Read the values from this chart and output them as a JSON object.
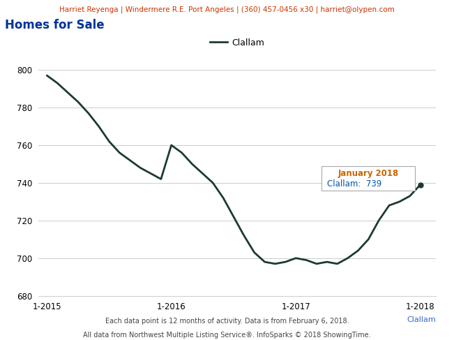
{
  "title": "Homes for Sale",
  "header_text": "Harriet Reyenga | Windermere R.E. Port Angeles | (360) 457-0456 x30 | harriet@olypen.com",
  "footer1": "Each data point is 12 months of activity. Data is from February 6, 2018.",
  "footer2": "All data from Northwest Multiple Listing Service®. InfoSparks © 2018 ShowingTime.",
  "legend_label": "Clallam",
  "tooltip_title": "January 2018",
  "tooltip_label": "Clallam:",
  "tooltip_value": "739",
  "line_color": "#1c3a35",
  "dot_color": "#1c3a35",
  "background_color": "#ffffff",
  "header_bg": "#ebebeb",
  "ylim": [
    680,
    810
  ],
  "yticks": [
    680,
    700,
    720,
    740,
    760,
    780,
    800
  ],
  "xlabel_ticks": [
    "1-2015",
    "1-2016",
    "1-2017",
    "1-2018"
  ],
  "x_values": [
    0,
    1,
    2,
    3,
    4,
    5,
    6,
    7,
    8,
    9,
    10,
    11,
    12,
    13,
    14,
    15,
    16,
    17,
    18,
    19,
    20,
    21,
    22,
    23,
    24,
    25,
    26,
    27,
    28,
    29,
    30,
    31,
    32,
    33,
    34,
    35,
    36
  ],
  "y_values": [
    797,
    793,
    788,
    783,
    777,
    770,
    762,
    756,
    752,
    748,
    745,
    742,
    760,
    756,
    750,
    745,
    740,
    732,
    722,
    712,
    703,
    698,
    697,
    698,
    700,
    699,
    697,
    698,
    697,
    700,
    704,
    710,
    720,
    728,
    730,
    733,
    739
  ],
  "grid_color": "#cccccc",
  "title_color": "#003399",
  "header_color": "#cc3300",
  "tooltip_title_color": "#cc6600",
  "tooltip_label_color": "#336699",
  "tooltip_value_color": "#0055aa",
  "footer_color": "#444444",
  "clallam_axis_color": "#3366cc"
}
